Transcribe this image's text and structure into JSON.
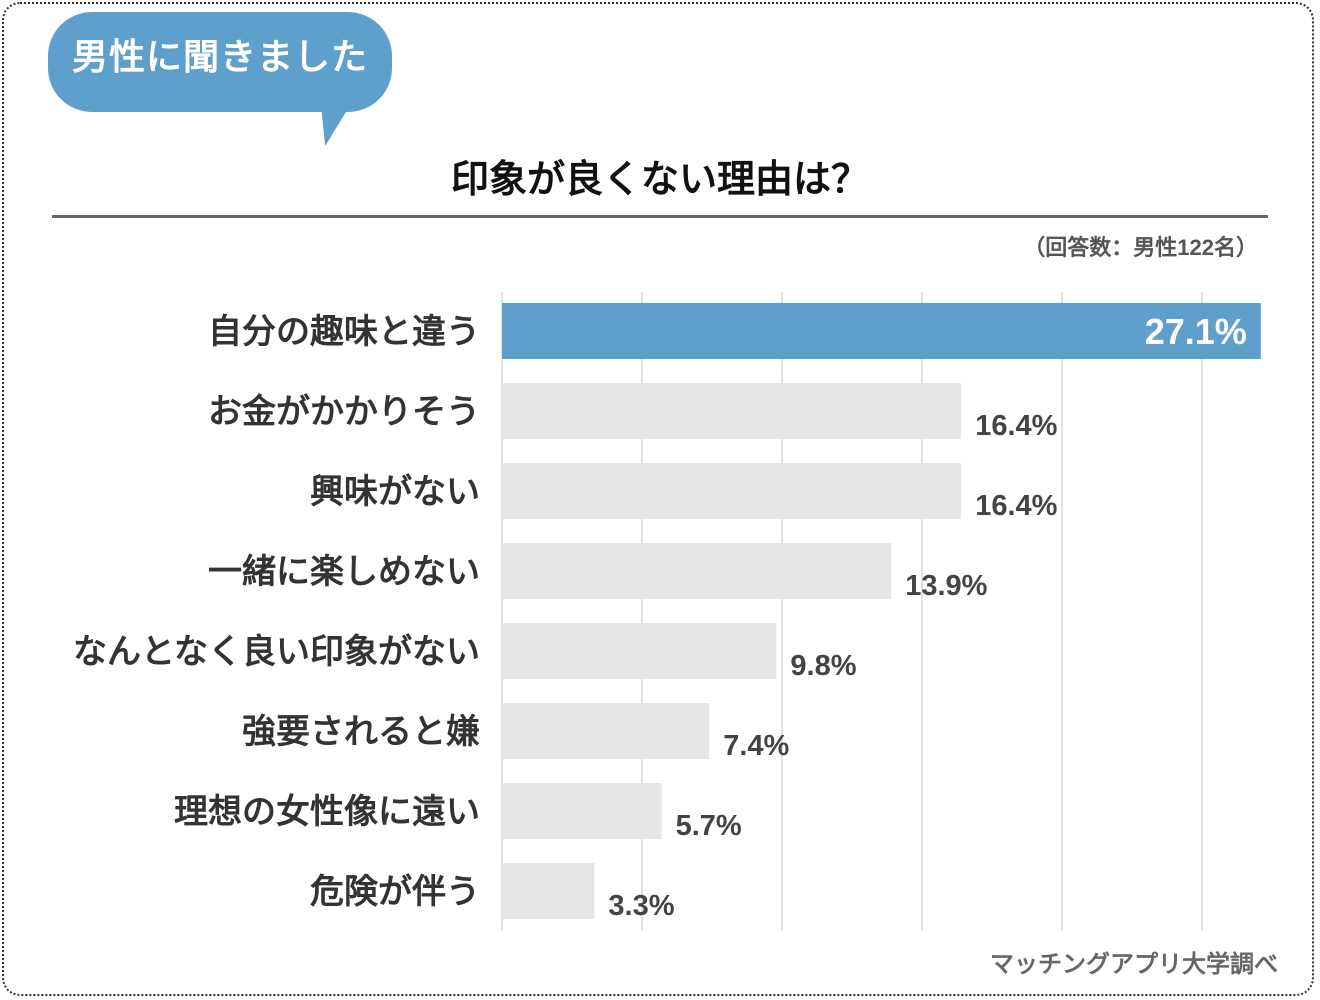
{
  "badge": "男性に聞きました",
  "note": "（回答数：男性122名）",
  "source": "マッチングアプリ大学調べ",
  "colors": {
    "highlight": "#5f9fcb",
    "bar": "#e6e6e6",
    "grid": "#d9d9d9",
    "label": "#333333",
    "value": "#444444"
  },
  "chart_data": {
    "type": "bar",
    "orientation": "horizontal",
    "title": "印象が良くない理由は？",
    "categories": [
      "自分の趣味と違う",
      "お金がかかりそう",
      "興味がない",
      "一緒に楽しめない",
      "なんとなく良い印象がない",
      "強要されると嫌",
      "理想の女性像に遠い",
      "危険が伴う"
    ],
    "values": [
      27.1,
      16.4,
      16.4,
      13.9,
      9.8,
      7.4,
      5.7,
      3.3
    ],
    "value_labels": [
      "27.1%",
      "16.4%",
      "16.4%",
      "13.9%",
      "9.8%",
      "7.4%",
      "5.7%",
      "3.3%"
    ],
    "unit": "%",
    "xlim": [
      0,
      27.5
    ],
    "grid_step": 5,
    "grid": true,
    "highlight_index": 0
  }
}
